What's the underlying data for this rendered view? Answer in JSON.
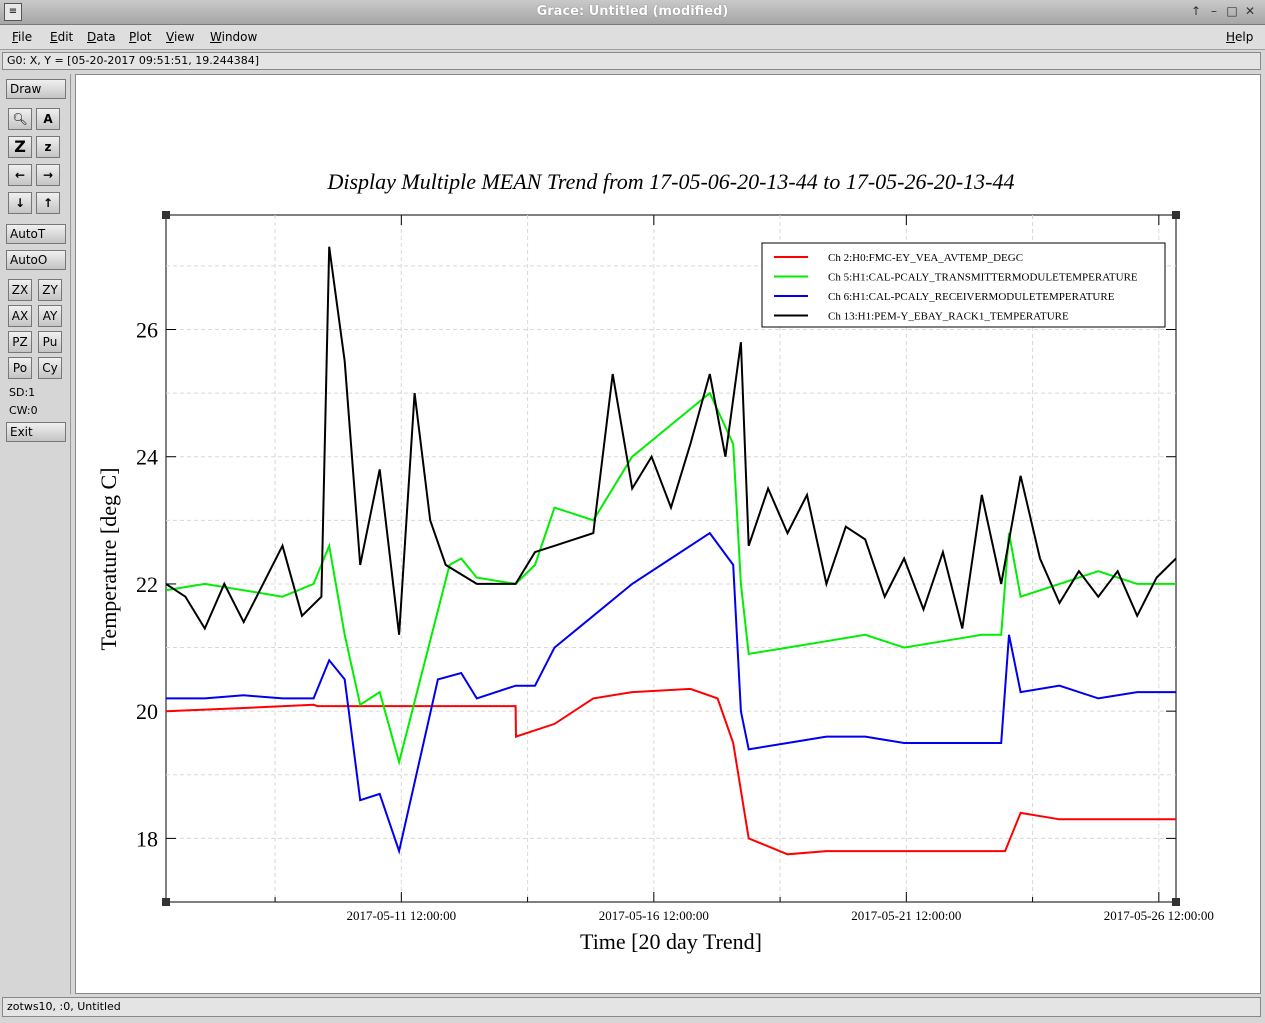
{
  "window": {
    "title": "Grace: Untitled (modified)"
  },
  "menu": [
    "File",
    "Edit",
    "Data",
    "Plot",
    "View",
    "Window"
  ],
  "help_label": "Help",
  "locator": "G0: X, Y = [05-20-2017 09:51:51, 19.244384]",
  "toolbar": {
    "draw_label": "Draw",
    "autot_label": "AutoT",
    "autoo_label": "AutoO",
    "zx": "ZX",
    "zy": "ZY",
    "ax": "AX",
    "ay": "AY",
    "pz": "PZ",
    "pu": "Pu",
    "po": "Po",
    "cy": "Cy",
    "sd": "SD:1",
    "cw": "CW:0",
    "exit_label": "Exit",
    "icons": [
      "zoom-icon",
      "text-icon",
      "zoom-in-icon",
      "zoom-out-icon",
      "left-arrow-icon",
      "right-arrow-icon",
      "down-arrow-icon",
      "up-arrow-icon"
    ]
  },
  "status": "zotws10, :0, Untitled",
  "chart_data": {
    "type": "line",
    "title": "Display Multiple MEAN Trend from 17-05-06-20-13-44 to 17-05-26-20-13-44",
    "xlabel": "Time [20 day Trend]",
    "ylabel": "Temperature [deg C]",
    "xlim": [
      "2017-05-06 20:13:44",
      "2017-05-26 20:13:44"
    ],
    "ylim": [
      17,
      27.8
    ],
    "yticks": [
      18,
      20,
      22,
      24,
      26
    ],
    "xticks": [
      "2017-05-11 12:00:00",
      "2017-05-16 12:00:00",
      "2017-05-21 12:00:00",
      "2017-05-26 12:00:00"
    ],
    "grid": true,
    "legend_position": "top-right",
    "series": [
      {
        "name": "Ch 2:H0:FMC-EY_VEA_AVTEMP_DEGC",
        "color": "#ff0000",
        "x": [
          0,
          2,
          3.8,
          3.9,
          9,
          9.01,
          10,
          11,
          12,
          13.5,
          14.2,
          14.6,
          15,
          16,
          17,
          18,
          19,
          21.5,
          21.6,
          22,
          23,
          24,
          25,
          26
        ],
        "y": [
          20.0,
          20.05,
          20.1,
          20.08,
          20.08,
          19.6,
          19.8,
          20.2,
          20.3,
          20.35,
          20.2,
          19.5,
          18.0,
          17.75,
          17.8,
          17.8,
          17.8,
          17.8,
          17.8,
          18.4,
          18.3,
          18.3,
          18.3,
          18.3
        ]
      },
      {
        "name": "Ch 5:H1:CAL-PCALY_TRANSMITTERMODULETEMPERATURE",
        "color": "#00ee00",
        "x": [
          0,
          1,
          2,
          3,
          3.8,
          4.2,
          4.6,
          5,
          5.5,
          6,
          7.3,
          7.6,
          8,
          9,
          9.5,
          10,
          11,
          12,
          13,
          14,
          14.6,
          14.8,
          15,
          16,
          17,
          18,
          19,
          20,
          21,
          21.5,
          21.7,
          22,
          23,
          24,
          25,
          26
        ],
        "y": [
          21.9,
          22.0,
          21.9,
          21.8,
          22.0,
          22.6,
          21.2,
          20.1,
          20.3,
          19.2,
          22.3,
          22.4,
          22.1,
          22.0,
          22.3,
          23.2,
          23.0,
          24.0,
          24.5,
          25.0,
          24.2,
          22.0,
          20.9,
          21.0,
          21.1,
          21.2,
          21.0,
          21.1,
          21.2,
          21.2,
          22.8,
          21.8,
          22.0,
          22.2,
          22.0,
          22.0
        ]
      },
      {
        "name": "Ch 6:H1:CAL-PCALY_RECEIVERMODULETEMPERATURE",
        "color": "#0000ee",
        "x": [
          0,
          1,
          2,
          3,
          3.8,
          4.2,
          4.6,
          5,
          5.5,
          6,
          7,
          7.6,
          8,
          9,
          9.5,
          10,
          11,
          12,
          13,
          14,
          14.6,
          14.8,
          15,
          16,
          17,
          18,
          19,
          20,
          21,
          21.5,
          21.7,
          22,
          23,
          24,
          25,
          26
        ],
        "y": [
          20.2,
          20.2,
          20.25,
          20.2,
          20.2,
          20.8,
          20.5,
          18.6,
          18.7,
          17.8,
          20.5,
          20.6,
          20.2,
          20.4,
          20.4,
          21.0,
          21.5,
          22.0,
          22.4,
          22.8,
          22.3,
          20.0,
          19.4,
          19.5,
          19.6,
          19.6,
          19.5,
          19.5,
          19.5,
          19.5,
          21.2,
          20.3,
          20.4,
          20.2,
          20.3,
          20.3
        ]
      },
      {
        "name": "Ch 13:H1:PEM-Y_EBAY_RACK1_TEMPERATURE",
        "color": "#000000",
        "x": [
          0,
          0.5,
          1,
          1.5,
          2,
          2.5,
          3,
          3.5,
          4,
          4.2,
          4.6,
          5,
          5.5,
          6,
          6.4,
          6.8,
          7.2,
          8,
          9,
          9.5,
          10,
          11,
          11.5,
          12,
          12.5,
          13,
          13.5,
          14,
          14.4,
          14.8,
          15,
          15.5,
          16,
          16.5,
          17,
          17.5,
          18,
          18.5,
          19,
          19.5,
          20,
          20.5,
          21,
          21.5,
          22,
          22.5,
          23,
          23.5,
          24,
          24.5,
          25,
          25.5,
          26
        ],
        "y": [
          22.0,
          21.8,
          21.3,
          22.0,
          21.4,
          22.0,
          22.6,
          21.5,
          21.8,
          27.3,
          25.5,
          22.3,
          23.8,
          21.2,
          25.0,
          23.0,
          22.3,
          22.0,
          22.0,
          22.5,
          22.6,
          22.8,
          25.3,
          23.5,
          24.0,
          23.2,
          24.2,
          25.3,
          24.0,
          25.8,
          22.6,
          23.5,
          22.8,
          23.4,
          22.0,
          22.9,
          22.7,
          21.8,
          22.4,
          21.6,
          22.5,
          21.3,
          23.4,
          22.0,
          23.7,
          22.4,
          21.7,
          22.2,
          21.8,
          22.2,
          21.5,
          22.1,
          22.4
        ]
      }
    ]
  }
}
